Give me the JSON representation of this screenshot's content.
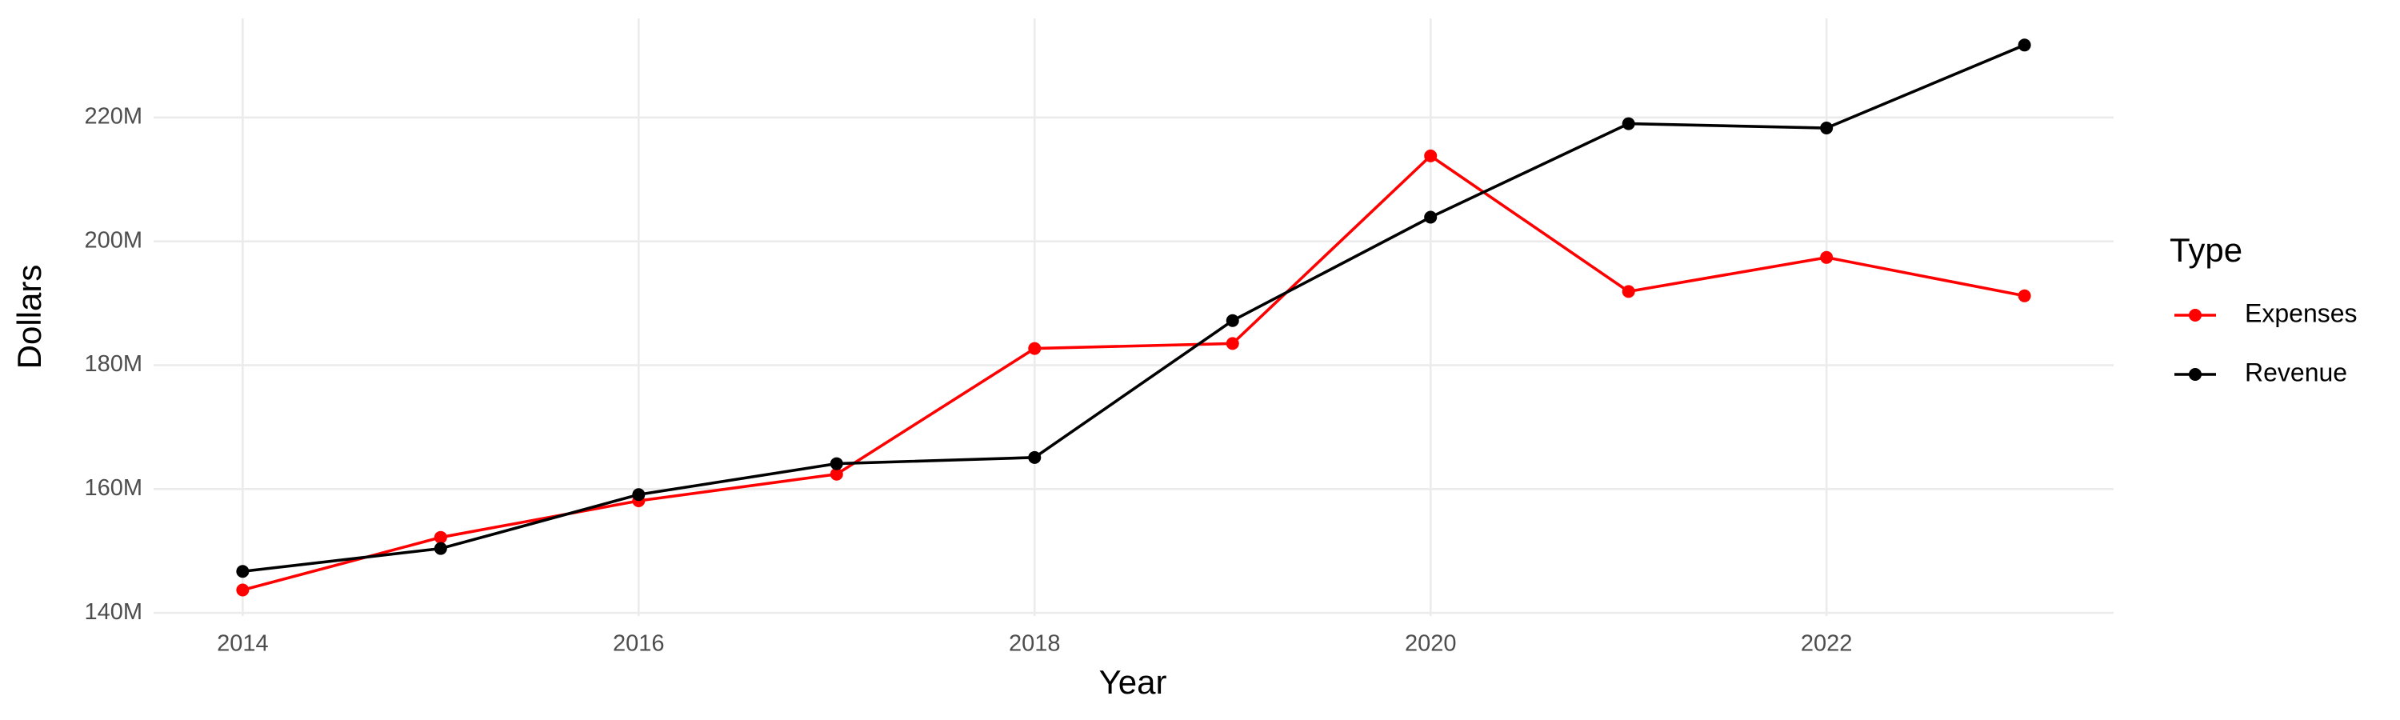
{
  "chart_data": {
    "type": "line",
    "x_label": "Year",
    "y_label": "Dollars",
    "x": [
      2014,
      2015,
      2016,
      2017,
      2018,
      2019,
      2020,
      2021,
      2022,
      2023
    ],
    "series": [
      {
        "name": "Expenses",
        "color": "#ff0000",
        "values": [
          143700000,
          152200000,
          158100000,
          162400000,
          182700000,
          183500000,
          213800000,
          191900000,
          197400000,
          191200000
        ]
      },
      {
        "name": "Revenue",
        "color": "#000000",
        "values": [
          146700000,
          150400000,
          159100000,
          164100000,
          165100000,
          187200000,
          203900000,
          219000000,
          218300000,
          231700000
        ]
      }
    ],
    "xlim": [
      2013.55,
      2023.45
    ],
    "xticks": [
      2014,
      2016,
      2018,
      2020,
      2022
    ],
    "ylim": [
      139500000,
      236000000
    ],
    "yticks": [
      {
        "value": 140000000,
        "label": "140M"
      },
      {
        "value": 160000000,
        "label": "160M"
      },
      {
        "value": 180000000,
        "label": "180M"
      },
      {
        "value": 200000000,
        "label": "200M"
      },
      {
        "value": 220000000,
        "label": "220M"
      }
    ],
    "grid": true,
    "legend_title": "Type",
    "legend_position": "right"
  }
}
